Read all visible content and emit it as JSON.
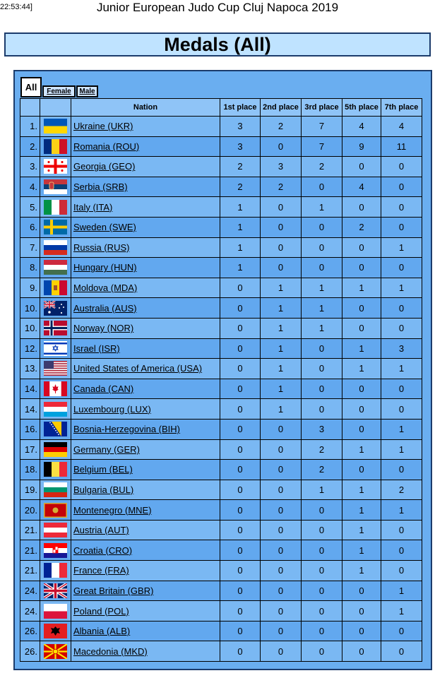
{
  "header": {
    "timestamp": "22:53:44]",
    "event_title": "Junior European Judo Cup Cluj Napoca 2019"
  },
  "title": "Medals (All)",
  "tabs": {
    "all": "All",
    "female": "Female",
    "male": "Male"
  },
  "columns": {
    "nation": "Nation",
    "first": "1st place",
    "second": "2nd place",
    "third": "3rd place",
    "fifth": "5th place",
    "seventh": "7th place"
  },
  "rows": [
    {
      "rank": "1.",
      "nation": "Ukraine (UKR)",
      "flag": "ukraine-flag-icon",
      "p1": "3",
      "p2": "2",
      "p3": "7",
      "p5": "4",
      "p7": "4"
    },
    {
      "rank": "2.",
      "nation": "Romania (ROU)",
      "flag": "romania-flag-icon",
      "p1": "3",
      "p2": "0",
      "p3": "7",
      "p5": "9",
      "p7": "11"
    },
    {
      "rank": "3.",
      "nation": "Georgia (GEO)",
      "flag": "georgia-flag-icon",
      "p1": "2",
      "p2": "3",
      "p3": "2",
      "p5": "0",
      "p7": "0"
    },
    {
      "rank": "4.",
      "nation": "Serbia (SRB)",
      "flag": "serbia-flag-icon",
      "p1": "2",
      "p2": "2",
      "p3": "0",
      "p5": "4",
      "p7": "0"
    },
    {
      "rank": "5.",
      "nation": "Italy (ITA)",
      "flag": "italy-flag-icon",
      "p1": "1",
      "p2": "0",
      "p3": "1",
      "p5": "0",
      "p7": "0"
    },
    {
      "rank": "6.",
      "nation": "Sweden (SWE)",
      "flag": "sweden-flag-icon",
      "p1": "1",
      "p2": "0",
      "p3": "0",
      "p5": "2",
      "p7": "0"
    },
    {
      "rank": "7.",
      "nation": "Russia (RUS)",
      "flag": "russia-flag-icon",
      "p1": "1",
      "p2": "0",
      "p3": "0",
      "p5": "0",
      "p7": "1"
    },
    {
      "rank": "8.",
      "nation": "Hungary (HUN)",
      "flag": "hungary-flag-icon",
      "p1": "1",
      "p2": "0",
      "p3": "0",
      "p5": "0",
      "p7": "0"
    },
    {
      "rank": "9.",
      "nation": "Moldova (MDA)",
      "flag": "moldova-flag-icon",
      "p1": "0",
      "p2": "1",
      "p3": "1",
      "p5": "1",
      "p7": "1"
    },
    {
      "rank": "10.",
      "nation": "Australia (AUS)",
      "flag": "australia-flag-icon",
      "p1": "0",
      "p2": "1",
      "p3": "1",
      "p5": "0",
      "p7": "0"
    },
    {
      "rank": "10.",
      "nation": "Norway (NOR)",
      "flag": "norway-flag-icon",
      "p1": "0",
      "p2": "1",
      "p3": "1",
      "p5": "0",
      "p7": "0"
    },
    {
      "rank": "12.",
      "nation": "Israel (ISR)",
      "flag": "israel-flag-icon",
      "p1": "0",
      "p2": "1",
      "p3": "0",
      "p5": "1",
      "p7": "3"
    },
    {
      "rank": "13.",
      "nation": "United States of America (USA)",
      "flag": "usa-flag-icon",
      "p1": "0",
      "p2": "1",
      "p3": "0",
      "p5": "1",
      "p7": "1"
    },
    {
      "rank": "14.",
      "nation": "Canada (CAN)",
      "flag": "canada-flag-icon",
      "p1": "0",
      "p2": "1",
      "p3": "0",
      "p5": "0",
      "p7": "0"
    },
    {
      "rank": "14.",
      "nation": "Luxembourg (LUX)",
      "flag": "luxembourg-flag-icon",
      "p1": "0",
      "p2": "1",
      "p3": "0",
      "p5": "0",
      "p7": "0"
    },
    {
      "rank": "16.",
      "nation": "Bosnia-Herzegovina (BIH)",
      "flag": "bosnia-flag-icon",
      "p1": "0",
      "p2": "0",
      "p3": "3",
      "p5": "0",
      "p7": "1"
    },
    {
      "rank": "17.",
      "nation": "Germany (GER)",
      "flag": "germany-flag-icon",
      "p1": "0",
      "p2": "0",
      "p3": "2",
      "p5": "1",
      "p7": "1"
    },
    {
      "rank": "18.",
      "nation": "Belgium (BEL)",
      "flag": "belgium-flag-icon",
      "p1": "0",
      "p2": "0",
      "p3": "2",
      "p5": "0",
      "p7": "0"
    },
    {
      "rank": "19.",
      "nation": "Bulgaria (BUL)",
      "flag": "bulgaria-flag-icon",
      "p1": "0",
      "p2": "0",
      "p3": "1",
      "p5": "1",
      "p7": "2"
    },
    {
      "rank": "20.",
      "nation": "Montenegro (MNE)",
      "flag": "montenegro-flag-icon",
      "p1": "0",
      "p2": "0",
      "p3": "0",
      "p5": "1",
      "p7": "1"
    },
    {
      "rank": "21.",
      "nation": "Austria (AUT)",
      "flag": "austria-flag-icon",
      "p1": "0",
      "p2": "0",
      "p3": "0",
      "p5": "1",
      "p7": "0"
    },
    {
      "rank": "21.",
      "nation": "Croatia (CRO)",
      "flag": "croatia-flag-icon",
      "p1": "0",
      "p2": "0",
      "p3": "0",
      "p5": "1",
      "p7": "0"
    },
    {
      "rank": "21.",
      "nation": "France (FRA)",
      "flag": "france-flag-icon",
      "p1": "0",
      "p2": "0",
      "p3": "0",
      "p5": "1",
      "p7": "0"
    },
    {
      "rank": "24.",
      "nation": "Great Britain (GBR)",
      "flag": "uk-flag-icon",
      "p1": "0",
      "p2": "0",
      "p3": "0",
      "p5": "0",
      "p7": "1"
    },
    {
      "rank": "24.",
      "nation": "Poland (POL)",
      "flag": "poland-flag-icon",
      "p1": "0",
      "p2": "0",
      "p3": "0",
      "p5": "0",
      "p7": "1"
    },
    {
      "rank": "26.",
      "nation": "Albania (ALB)",
      "flag": "albania-flag-icon",
      "p1": "0",
      "p2": "0",
      "p3": "0",
      "p5": "0",
      "p7": "0"
    },
    {
      "rank": "26.",
      "nation": "Macedonia (MKD)",
      "flag": "macedonia-flag-icon",
      "p1": "0",
      "p2": "0",
      "p3": "0",
      "p5": "0",
      "p7": "0"
    }
  ],
  "colors": {
    "panel": "#6aaef0",
    "title_bg": "#bfe3ff",
    "border": "#1b3b6b"
  }
}
